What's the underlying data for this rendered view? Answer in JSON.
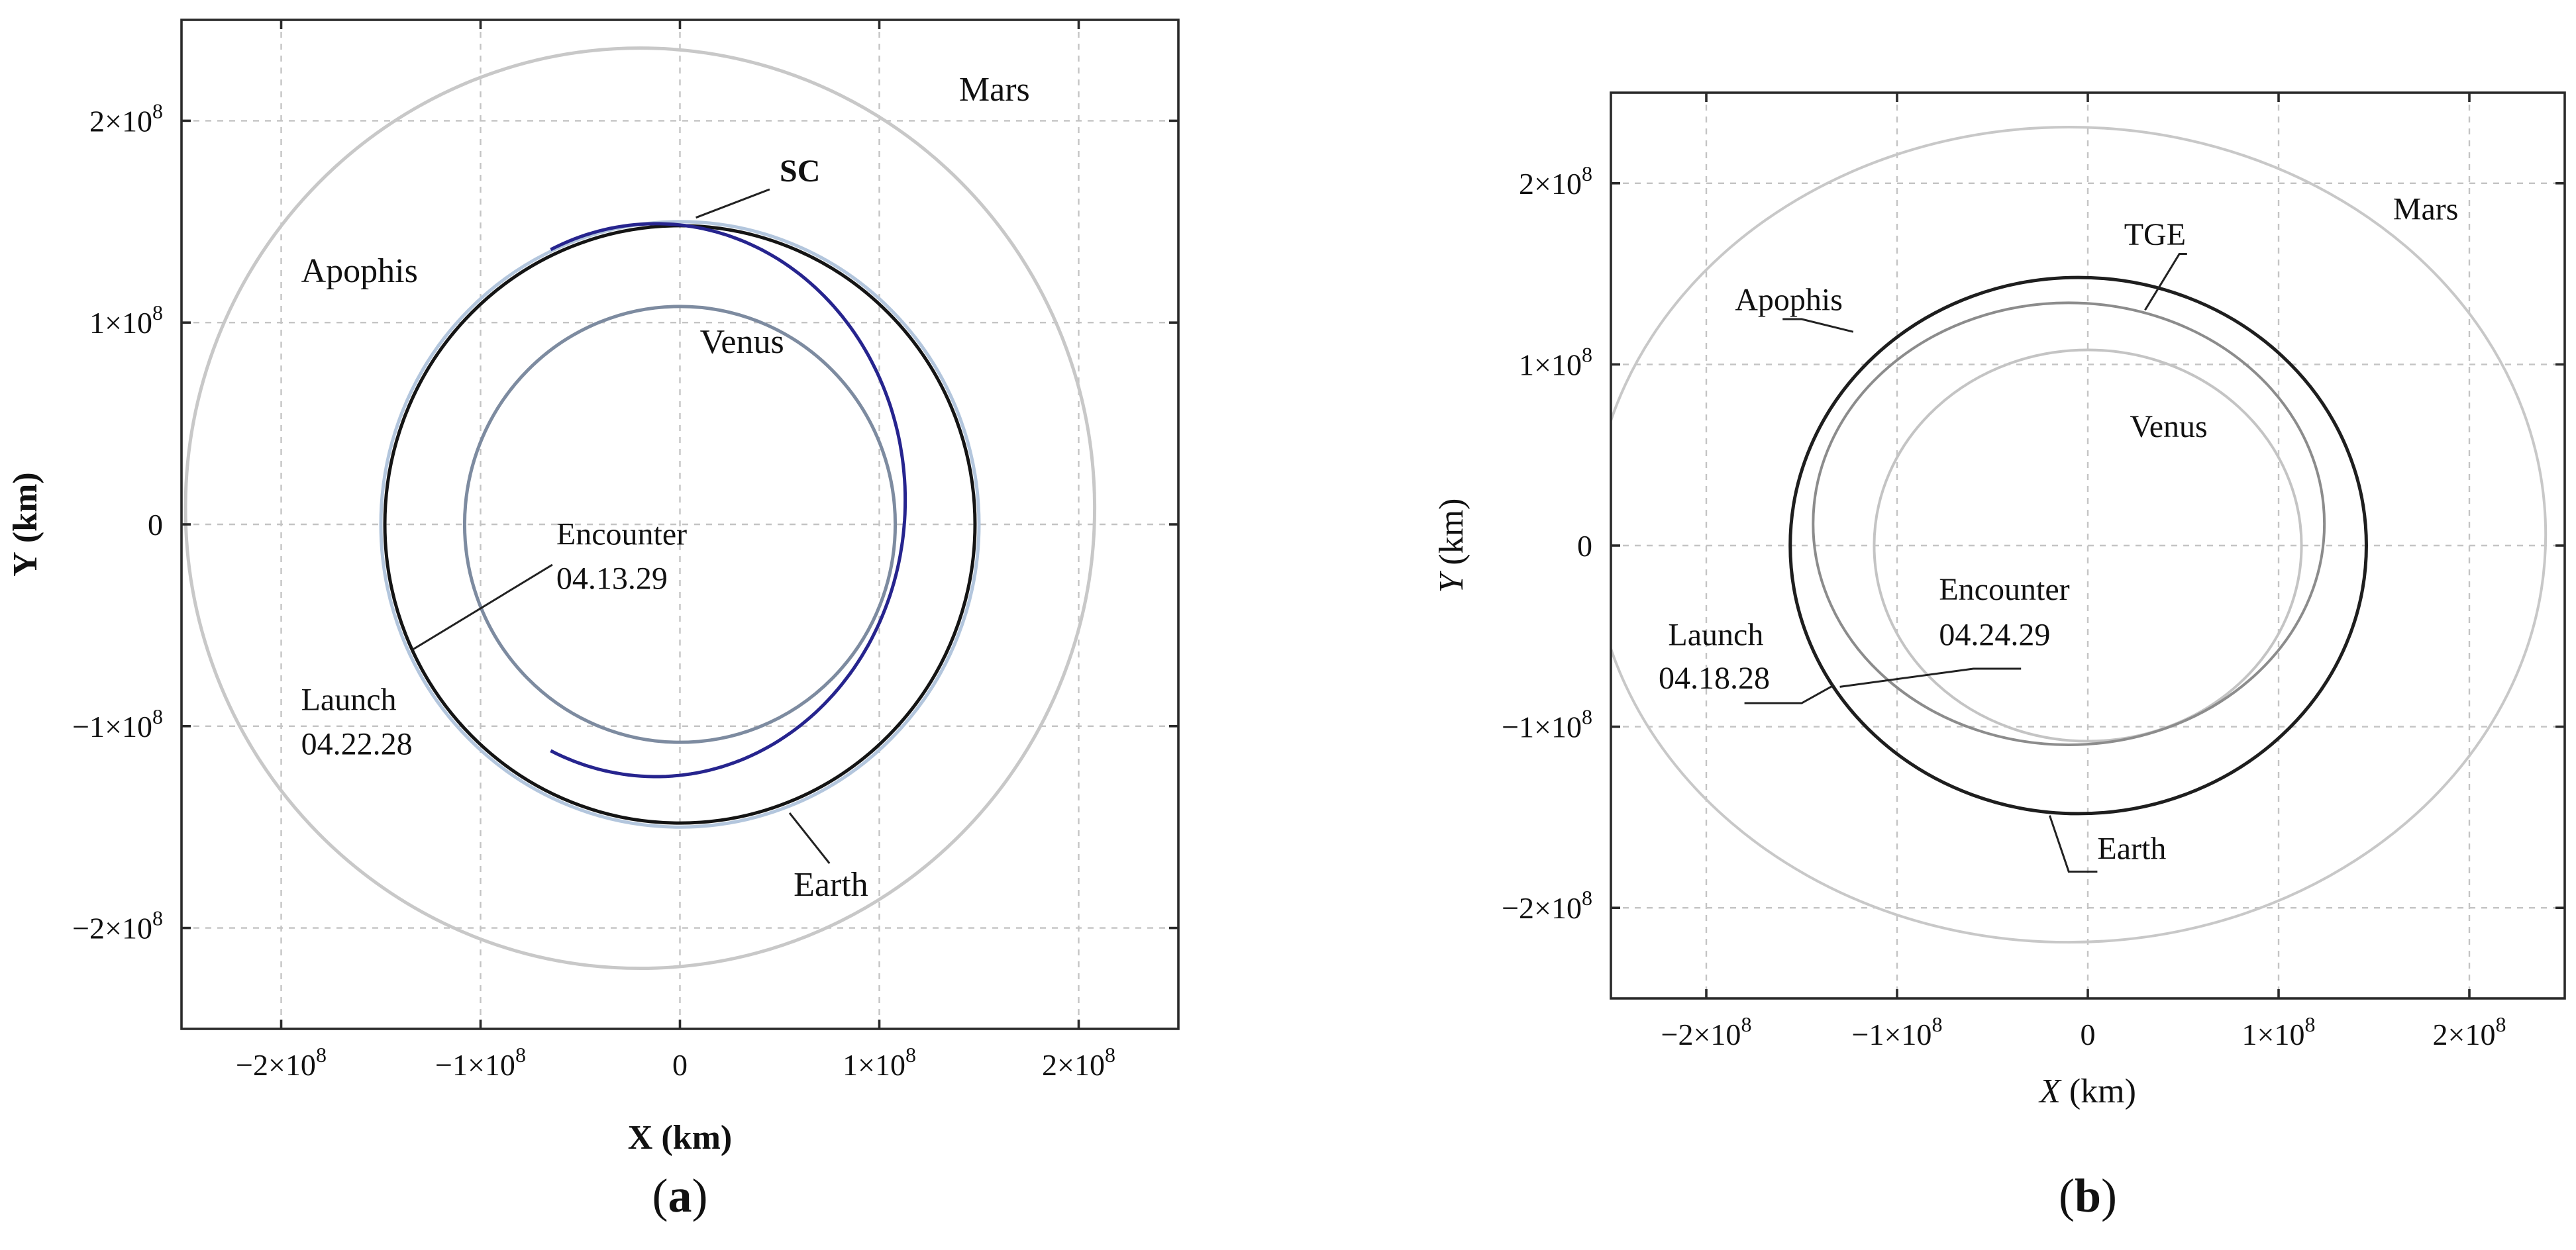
{
  "chart_data": [
    {
      "panel": "a",
      "type": "line",
      "caption_letter": "a",
      "xlabel_letter": "X",
      "xlabel_unit": "(km)",
      "ylabel_letter": "Y",
      "ylabel_unit": "(km)",
      "xlim": [
        -250000000.0,
        250000000.0
      ],
      "ylim": [
        -250000000.0,
        250000000.0
      ],
      "grid": true,
      "xticks": [
        {
          "value": -200000000.0,
          "mant": "−2×10",
          "exp": "8"
        },
        {
          "value": -100000000.0,
          "mant": "−1×10",
          "exp": "8"
        },
        {
          "value": 0,
          "mant": "0",
          "exp": ""
        },
        {
          "value": 100000000.0,
          "mant": "1×10",
          "exp": "8"
        },
        {
          "value": 200000000.0,
          "mant": "2×10",
          "exp": "8"
        }
      ],
      "yticks": [
        {
          "value": 200000000.0,
          "mant": "2×10",
          "exp": "8"
        },
        {
          "value": 100000000.0,
          "mant": "1×10",
          "exp": "8"
        },
        {
          "value": 0,
          "mant": "0",
          "exp": ""
        },
        {
          "value": -100000000.0,
          "mant": "−1×10",
          "exp": "8"
        },
        {
          "value": -200000000.0,
          "mant": "−2×10",
          "exp": "8"
        }
      ],
      "series": [
        {
          "name": "Mars",
          "shape": "ellipse",
          "cx": -20000000.0,
          "cy": 8000000.0,
          "rx": 228000000.0,
          "ry": 228000000.0,
          "color": "#c8c8c8",
          "width": 5
        },
        {
          "name": "Earth",
          "shape": "ellipse",
          "cx": 0.0,
          "cy": 0.0,
          "rx": 150000000.0,
          "ry": 150000000.0,
          "color": "#b3c6dd",
          "width": 5
        },
        {
          "name": "Venus",
          "shape": "ellipse",
          "cx": 0.0,
          "cy": 0.0,
          "rx": 108000000.0,
          "ry": 108000000.0,
          "color": "#7d8ba0",
          "width": 5
        },
        {
          "name": "SC",
          "shape": "ellipse",
          "cx": 0.0,
          "cy": 0.0,
          "rx": 148000000.0,
          "ry": 148000000.0,
          "color": "#141414",
          "width": 5
        },
        {
          "name": "Apophis",
          "shape": "arc",
          "cx": -12000000.0,
          "cy": 12000000.0,
          "rx": 125000000.0,
          "ry": 137000000.0,
          "start_deg": 245,
          "end_deg": 475,
          "color": "#26248e",
          "width": 5
        }
      ],
      "annotations": [
        {
          "text": "Mars",
          "x": 140000000.0,
          "y": 210000000.0,
          "bold": false
        },
        {
          "text": "SC",
          "x": 50000000.0,
          "y": 170000000.0,
          "bold": true
        },
        {
          "text": "Apophis",
          "x": -190000000.0,
          "y": 120000000.0,
          "bold": false
        },
        {
          "text": "Venus",
          "x": 10000000.0,
          "y": 85000000.0,
          "bold": false
        },
        {
          "text": "Encounter",
          "x": -62000000.0,
          "y": -10000000.0,
          "bold": false
        },
        {
          "text": "04.13.29",
          "x": -62000000.0,
          "y": -32000000.0,
          "bold": false
        },
        {
          "text": "Launch",
          "x": -190000000.0,
          "y": -92000000.0,
          "bold": false
        },
        {
          "text": "04.22.28",
          "x": -190000000.0,
          "y": -114000000.0,
          "bold": false
        },
        {
          "text": "Earth",
          "x": 57000000.0,
          "y": -184000000.0,
          "bold": false
        }
      ],
      "leaders": [
        [
          [
            8000000.0,
            152000000.0
          ],
          [
            45000000.0,
            166000000.0
          ]
        ],
        [
          [
            -134000000.0,
            -62000000.0
          ],
          [
            -64000000.0,
            -20000000.0
          ]
        ],
        [
          [
            55000000.0,
            -143000000.0
          ],
          [
            75000000.0,
            -168000000.0
          ]
        ]
      ]
    },
    {
      "panel": "b",
      "type": "line",
      "caption_letter": "b",
      "xlabel_letter": "X",
      "xlabel_unit": "(km)",
      "ylabel_letter": "Y",
      "ylabel_unit": "(km)",
      "xlim": [
        -250000000.0,
        250000000.0
      ],
      "ylim": [
        -250000000.0,
        250000000.0
      ],
      "grid": true,
      "xticks": [
        {
          "value": -200000000.0,
          "mant": "−2×10",
          "exp": "8"
        },
        {
          "value": -100000000.0,
          "mant": "−1×10",
          "exp": "8"
        },
        {
          "value": 0,
          "mant": "0",
          "exp": ""
        },
        {
          "value": 100000000.0,
          "mant": "1×10",
          "exp": "8"
        },
        {
          "value": 200000000.0,
          "mant": "2×10",
          "exp": "8"
        }
      ],
      "yticks": [
        {
          "value": 200000000.0,
          "mant": "2×10",
          "exp": "8"
        },
        {
          "value": 100000000.0,
          "mant": "1×10",
          "exp": "8"
        },
        {
          "value": 0,
          "mant": "0",
          "exp": ""
        },
        {
          "value": -100000000.0,
          "mant": "−1×10",
          "exp": "8"
        },
        {
          "value": -200000000.0,
          "mant": "−2×10",
          "exp": "8"
        }
      ],
      "series": [
        {
          "name": "Mars",
          "shape": "ellipse",
          "cx": -10000000.0,
          "cy": 6000000.0,
          "rx": 250000000.0,
          "ry": 225000000.0,
          "color": "#c8c8c8",
          "width": 4
        },
        {
          "name": "Venus",
          "shape": "ellipse",
          "cx": 0.0,
          "cy": 0.0,
          "rx": 112000000.0,
          "ry": 108000000.0,
          "color": "#c4c4c4",
          "width": 4
        },
        {
          "name": "Apophis",
          "shape": "ellipse",
          "cx": -10000000.0,
          "cy": 12000000.0,
          "rx": 134000000.0,
          "ry": 122000000.0,
          "color": "#8c8c8c",
          "width": 4
        },
        {
          "name": "Earth",
          "shape": "ellipse",
          "cx": -5000000.0,
          "cy": 0.0,
          "rx": 151000000.0,
          "ry": 148000000.0,
          "color": "#1e1e1e",
          "width": 5
        }
      ],
      "annotations": [
        {
          "text": "Mars",
          "x": 160000000.0,
          "y": 180000000.0,
          "bold": false
        },
        {
          "text": "TGE",
          "x": 19000000.0,
          "y": 166000000.0,
          "bold": false
        },
        {
          "text": "Apophis",
          "x": -185000000.0,
          "y": 130000000.0,
          "bold": false
        },
        {
          "text": "Venus",
          "x": 22000000.0,
          "y": 60000000.0,
          "bold": false
        },
        {
          "text": "Encounter",
          "x": -78000000.0,
          "y": -30000000.0,
          "bold": false
        },
        {
          "text": "04.24.29",
          "x": -78000000.0,
          "y": -55000000.0,
          "bold": false
        },
        {
          "text": "Launch",
          "x": -220000000.0,
          "y": -55000000.0,
          "bold": false
        },
        {
          "text": "04.18.28",
          "x": -225000000.0,
          "y": -79000000.0,
          "bold": false
        },
        {
          "text": "Earth",
          "x": 5000000.0,
          "y": -173000000.0,
          "bold": false
        }
      ],
      "leaders": [
        [
          [
            30000000.0,
            130000000.0
          ],
          [
            48000000.0,
            161000000.0
          ],
          [
            52000000.0,
            161000000.0
          ]
        ],
        [
          [
            -123000000.0,
            118000000.0
          ],
          [
            -150000000.0,
            125000000.0
          ],
          [
            -160000000.0,
            125000000.0
          ]
        ],
        [
          [
            -133000000.0,
            -77000000.0
          ],
          [
            -150000000.0,
            -87000000.0
          ],
          [
            -180000000.0,
            -87000000.0
          ]
        ],
        [
          [
            -130000000.0,
            -78000000.0
          ],
          [
            -60000000.0,
            -68000000.0
          ],
          [
            -35000000.0,
            -68000000.0
          ]
        ],
        [
          [
            -20000000.0,
            -149000000.0
          ],
          [
            -10000000.0,
            -180000000.0
          ],
          [
            5000000.0,
            -180000000.0
          ]
        ]
      ]
    }
  ]
}
